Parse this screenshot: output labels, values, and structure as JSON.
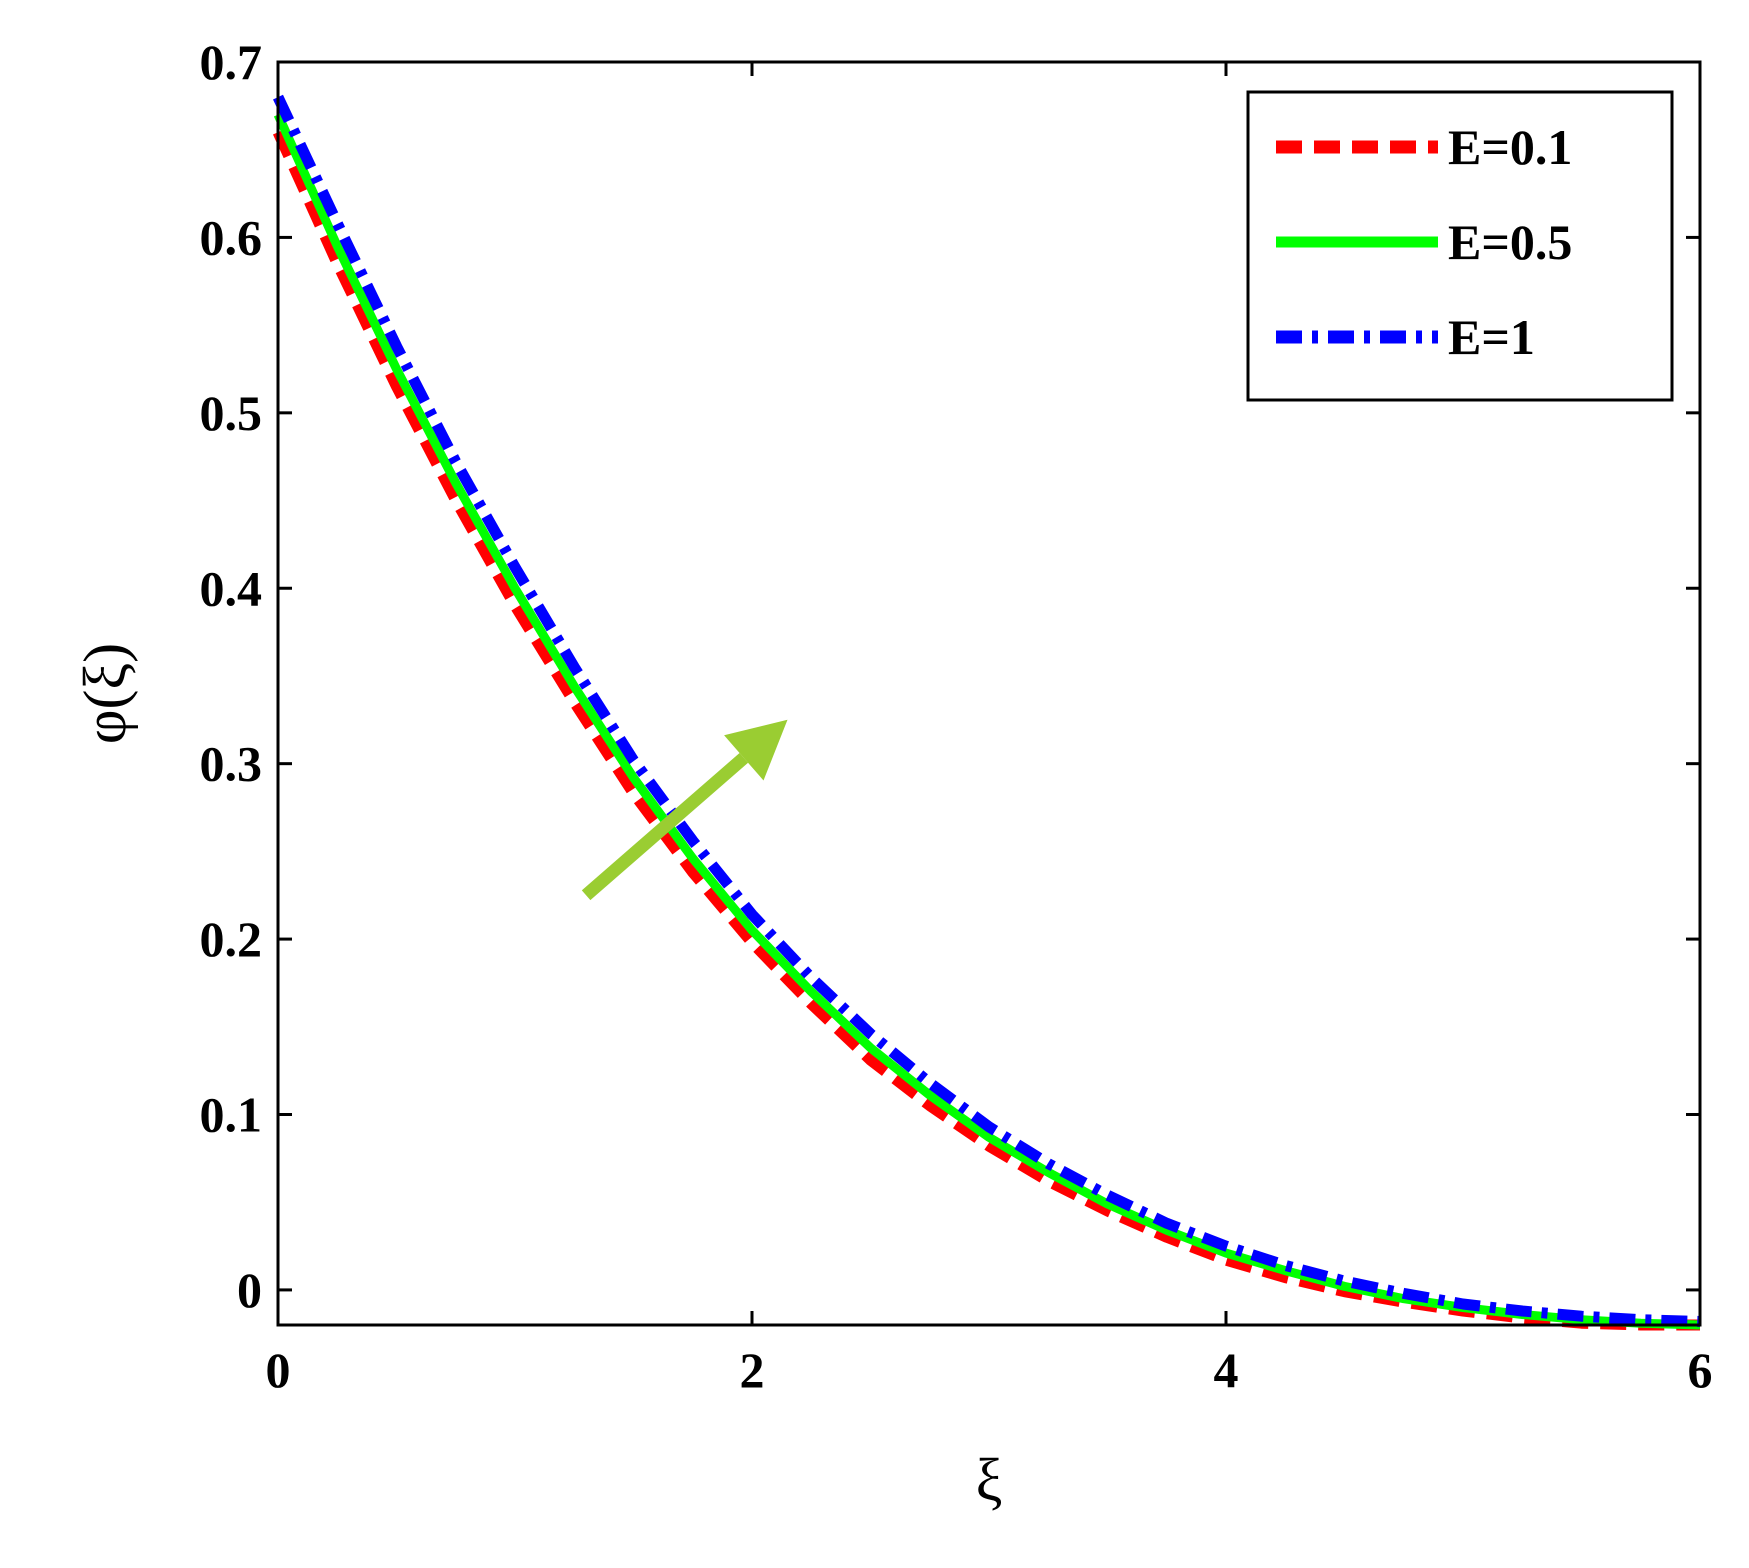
{
  "chart_data": {
    "type": "line",
    "xlabel": "ξ",
    "ylabel": "φ(ξ)",
    "xlim": [
      0,
      6
    ],
    "ylim": [
      -0.02,
      0.7
    ],
    "xticks": [
      0,
      2,
      4,
      6
    ],
    "yticks": [
      0,
      0.1,
      0.2,
      0.3,
      0.4,
      0.5,
      0.6,
      0.7
    ],
    "xtick_labels": [
      "0",
      "2",
      "4",
      "6"
    ],
    "ytick_labels": [
      "0",
      "0.1",
      "0.2",
      "0.3",
      "0.4",
      "0.5",
      "0.6",
      "0.7"
    ],
    "grid": false,
    "legend_position": "top-right",
    "series": [
      {
        "name": "E=0.1",
        "color": "#ff0000",
        "style": "dashed",
        "x": [
          0,
          0.25,
          0.5,
          0.75,
          1.0,
          1.25,
          1.5,
          1.75,
          2.0,
          2.25,
          2.5,
          2.75,
          3.0,
          3.25,
          3.5,
          3.75,
          4.0,
          4.25,
          4.5,
          4.75,
          5.0,
          5.25,
          5.5,
          5.75,
          6.0
        ],
        "y": [
          0.66,
          0.585,
          0.515,
          0.45,
          0.39,
          0.335,
          0.283,
          0.238,
          0.198,
          0.163,
          0.131,
          0.105,
          0.082,
          0.062,
          0.045,
          0.03,
          0.017,
          0.007,
          -0.001,
          -0.007,
          -0.012,
          -0.016,
          -0.019,
          -0.02,
          -0.02
        ]
      },
      {
        "name": "E=0.5",
        "color": "#00ff00",
        "style": "solid",
        "x": [
          0,
          0.25,
          0.5,
          0.75,
          1.0,
          1.25,
          1.5,
          1.75,
          2.0,
          2.25,
          2.5,
          2.75,
          3.0,
          3.25,
          3.5,
          3.75,
          4.0,
          4.25,
          4.5,
          4.75,
          5.0,
          5.25,
          5.5,
          5.75,
          6.0
        ],
        "y": [
          0.67,
          0.595,
          0.525,
          0.46,
          0.4,
          0.344,
          0.292,
          0.246,
          0.205,
          0.17,
          0.138,
          0.111,
          0.087,
          0.067,
          0.049,
          0.034,
          0.021,
          0.011,
          0.002,
          -0.005,
          -0.01,
          -0.014,
          -0.017,
          -0.019,
          -0.02
        ]
      },
      {
        "name": "E=1",
        "color": "#0000ff",
        "style": "dash-dot",
        "x": [
          0,
          0.25,
          0.5,
          0.75,
          1.0,
          1.25,
          1.5,
          1.75,
          2.0,
          2.25,
          2.5,
          2.75,
          3.0,
          3.25,
          3.5,
          3.75,
          4.0,
          4.25,
          4.5,
          4.75,
          5.0,
          5.25,
          5.5,
          5.75,
          6.0
        ],
        "y": [
          0.68,
          0.608,
          0.538,
          0.472,
          0.412,
          0.355,
          0.302,
          0.256,
          0.214,
          0.178,
          0.146,
          0.118,
          0.093,
          0.072,
          0.054,
          0.038,
          0.025,
          0.014,
          0.005,
          -0.002,
          -0.008,
          -0.012,
          -0.015,
          -0.017,
          -0.018
        ]
      }
    ],
    "annotations": [
      {
        "type": "arrow",
        "color": "#9acd32",
        "from": [
          1.3,
          0.225
        ],
        "to": [
          2.15,
          0.325
        ]
      }
    ]
  }
}
